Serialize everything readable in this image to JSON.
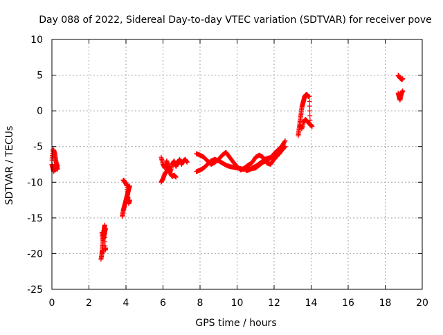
{
  "chart_data": {
    "type": "scatter",
    "title": "Day 088 of 2022, Sidereal Day-to-day VTEC variation (SDTVAR) for receiver pove",
    "xlabel": "GPS time / hours",
    "ylabel": "SDTVAR / TECUs",
    "xlim": [
      0,
      20
    ],
    "ylim": [
      -25,
      10
    ],
    "x_ticks": [
      0,
      2,
      4,
      6,
      8,
      10,
      12,
      14,
      16,
      18,
      20
    ],
    "y_ticks": [
      -25,
      -20,
      -15,
      -10,
      -5,
      0,
      5,
      10
    ],
    "grid": true,
    "marker": "+",
    "series": [
      {
        "name": "SDTVAR",
        "color": "#ff0000",
        "segments": [
          {
            "x": [
              0.0,
              0.05,
              0.1,
              0.15,
              0.2,
              0.25,
              0.3
            ],
            "y": [
              -7.0,
              -5.5,
              -5.5,
              -6.0,
              -6.8,
              -7.5,
              -8.2
            ]
          },
          {
            "x": [
              0.0,
              0.05,
              0.1,
              0.15,
              0.2,
              0.25,
              0.3
            ],
            "y": [
              -7.5,
              -8.0,
              -8.5,
              -8.0,
              -8.3,
              -8.0,
              -7.6
            ]
          },
          {
            "x": [
              2.65,
              2.7,
              2.72,
              2.75,
              2.78,
              2.8,
              2.83,
              2.85,
              2.88,
              2.9
            ],
            "y": [
              -20.8,
              -20.0,
              -19.5,
              -18.5,
              -17.5,
              -17.0,
              -16.5,
              -16.0,
              -19.5,
              -19.2
            ]
          },
          {
            "x": [
              2.7,
              2.75,
              2.8,
              2.85,
              2.9
            ],
            "y": [
              -17.0,
              -18.0,
              -17.8,
              -17.0,
              -16.5
            ]
          },
          {
            "x": [
              3.8,
              3.85,
              3.9,
              3.95,
              4.0,
              4.05,
              4.1,
              4.15,
              4.2
            ],
            "y": [
              -14.8,
              -14.0,
              -13.5,
              -13.0,
              -12.5,
              -12.0,
              -11.5,
              -11.0,
              -10.5
            ]
          },
          {
            "x": [
              3.85,
              3.9,
              3.95,
              4.0,
              4.05,
              4.1,
              4.15,
              4.2
            ],
            "y": [
              -9.7,
              -9.8,
              -10.0,
              -10.2,
              -10.5,
              -12.0,
              -13.0,
              -12.5
            ]
          },
          {
            "x": [
              5.9,
              6.0,
              6.1,
              6.2,
              6.3,
              6.4,
              6.5,
              6.6,
              6.7,
              6.8,
              6.9,
              7.0,
              7.1,
              7.2,
              7.3
            ],
            "y": [
              -6.5,
              -7.5,
              -8.0,
              -7.0,
              -7.8,
              -8.5,
              -7.5,
              -7.0,
              -7.8,
              -7.2,
              -6.8,
              -7.5,
              -7.0,
              -6.8,
              -7.2
            ]
          },
          {
            "x": [
              5.9,
              6.0,
              6.1,
              6.2,
              6.3,
              6.4,
              6.5,
              6.6,
              6.7
            ],
            "y": [
              -10.0,
              -9.5,
              -8.8,
              -8.5,
              -8.0,
              -8.8,
              -9.2,
              -9.0,
              -9.3
            ]
          },
          {
            "x": [
              7.8,
              8.0,
              8.2,
              8.4,
              8.6,
              8.8,
              9.0,
              9.2,
              9.4,
              9.6,
              9.8,
              10.0,
              10.2,
              10.4,
              10.6,
              10.8,
              11.0,
              11.2,
              11.4,
              11.6,
              11.8,
              12.0,
              12.2,
              12.4,
              12.6
            ],
            "y": [
              -8.5,
              -8.3,
              -8.0,
              -7.5,
              -7.0,
              -6.8,
              -7.0,
              -7.3,
              -7.6,
              -7.8,
              -7.9,
              -8.0,
              -8.1,
              -8.2,
              -8.2,
              -8.1,
              -8.0,
              -7.6,
              -7.2,
              -7.0,
              -6.6,
              -6.0,
              -5.5,
              -5.0,
              -4.2
            ]
          },
          {
            "x": [
              7.8,
              8.0,
              8.2,
              8.4,
              8.6,
              8.8,
              9.0,
              9.2,
              9.4,
              9.6,
              9.8,
              10.0,
              10.2,
              10.4,
              10.6,
              10.8,
              11.0,
              11.2,
              11.4,
              11.6,
              11.8,
              12.0,
              12.2,
              12.4,
              12.6
            ],
            "y": [
              -6.0,
              -6.2,
              -6.5,
              -7.0,
              -7.5,
              -7.2,
              -6.8,
              -6.2,
              -5.8,
              -6.5,
              -7.2,
              -7.8,
              -8.3,
              -8.0,
              -7.6,
              -7.3,
              -6.5,
              -6.2,
              -6.5,
              -7.3,
              -7.5,
              -6.8,
              -6.2,
              -5.6,
              -5.0
            ]
          },
          {
            "x": [
              10.5,
              10.7,
              10.9,
              11.1,
              11.3,
              11.5,
              11.7,
              11.9,
              12.1,
              12.3
            ],
            "y": [
              -8.4,
              -8.2,
              -7.9,
              -7.6,
              -7.2,
              -6.8,
              -6.6,
              -6.5,
              -6.3,
              -6.0
            ]
          },
          {
            "x": [
              13.3,
              13.35,
              13.4,
              13.45,
              13.5,
              13.55,
              13.6,
              13.65,
              13.7,
              13.75,
              13.8,
              13.85,
              13.9,
              13.95,
              14.0,
              14.05
            ],
            "y": [
              -3.5,
              -2.5,
              -1.5,
              -0.5,
              0.5,
              1.0,
              1.5,
              2.0,
              2.2,
              2.3,
              2.2,
              2.0,
              2.0,
              -2.0,
              -2.0,
              -2.2
            ]
          },
          {
            "x": [
              13.4,
              13.5,
              13.6,
              13.7,
              13.8,
              13.9,
              14.0
            ],
            "y": [
              -2.0,
              -2.5,
              -1.5,
              -1.2,
              -1.5,
              -1.8,
              -2.0
            ]
          },
          {
            "x": [
              18.7,
              18.75,
              18.8,
              18.85,
              18.9,
              18.95
            ],
            "y": [
              5.0,
              4.8,
              4.6,
              4.5,
              4.4,
              4.5
            ]
          },
          {
            "x": [
              18.7,
              18.75,
              18.8,
              18.85,
              18.9,
              18.95
            ],
            "y": [
              2.5,
              2.0,
              1.5,
              2.2,
              2.6,
              2.8
            ]
          }
        ]
      }
    ]
  }
}
